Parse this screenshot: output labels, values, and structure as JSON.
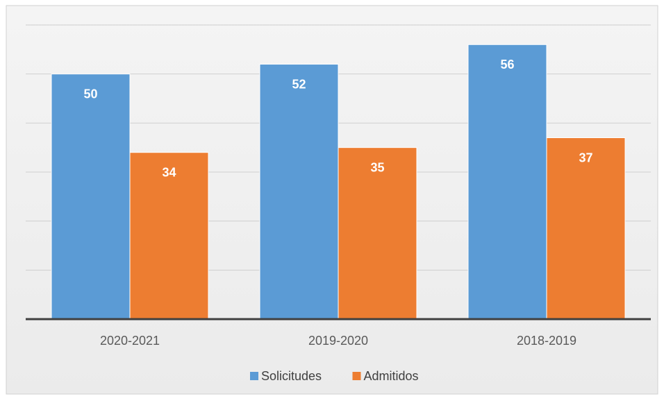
{
  "chart_data": {
    "type": "bar",
    "categories": [
      "2020-2021",
      "2019-2020",
      "2018-2019"
    ],
    "series": [
      {
        "name": "Solicitudes",
        "color": "#5b9bd5",
        "values": [
          50,
          52,
          56
        ]
      },
      {
        "name": "Admitidos",
        "color": "#ed7d31",
        "values": [
          34,
          35,
          37
        ]
      }
    ],
    "ylim": [
      0,
      60
    ],
    "yticks": [
      0,
      10,
      20,
      30,
      40,
      50,
      60
    ],
    "grid": true,
    "legend": "bottom"
  }
}
